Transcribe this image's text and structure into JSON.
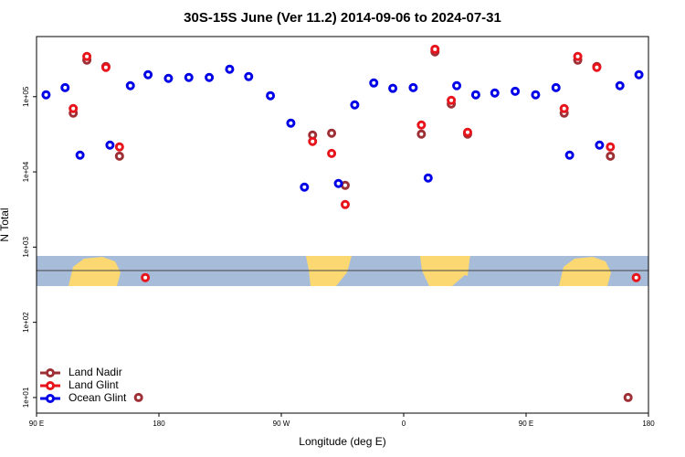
{
  "chart_data": {
    "type": "scatter",
    "title": "30S-15S June (Ver 11.2)   2014-09-06 to 2024-07-31",
    "x_label": "Longitude (deg E)",
    "y_label": "N Total",
    "xlim": [
      90,
      540
    ],
    "xticks": [
      {
        "value": 90,
        "label": "90 E"
      },
      {
        "value": 180,
        "label": "180"
      },
      {
        "value": 270,
        "label": "90 W"
      },
      {
        "value": 360,
        "label": "0"
      },
      {
        "value": 450,
        "label": "90 E"
      },
      {
        "value": 540,
        "label": "180"
      }
    ],
    "ylim": [
      6.2,
      630000
    ],
    "log_y": true,
    "yticks": [
      {
        "value": 10,
        "label": "1e+01"
      },
      {
        "value": 100,
        "label": "1e+02"
      },
      {
        "value": 1000,
        "label": "1e+03"
      },
      {
        "value": 10000,
        "label": "1e+04"
      },
      {
        "value": 100000,
        "label": "1e+05"
      }
    ],
    "legend": "bottom-left",
    "series": [
      {
        "name": "Land Nadir",
        "color": "#9e2f35",
        "x": [
          117,
          127,
          141,
          151,
          165,
          293,
          307,
          317,
          373,
          383,
          395,
          407,
          478,
          488,
          502,
          512,
          525
        ],
        "values": [
          60400,
          306000,
          252000,
          16200,
          10,
          30900,
          32700,
          6620,
          31800,
          394000,
          80000,
          31800,
          60400,
          306000,
          252000,
          16200,
          10
        ]
      },
      {
        "name": "Land Glint",
        "color": "#e8141b",
        "x": [
          117,
          127,
          141,
          151,
          170,
          293,
          307,
          317,
          373,
          383,
          395,
          407,
          478,
          488,
          502,
          512,
          531
        ],
        "values": [
          69500,
          343000,
          245000,
          21500,
          393,
          25400,
          17600,
          3680,
          42000,
          428000,
          89400,
          33600,
          69500,
          343000,
          245000,
          21500,
          393
        ]
      },
      {
        "name": "Ocean Glint",
        "color": "#0000e6",
        "x": [
          97,
          111,
          122,
          144,
          159,
          172,
          187,
          202,
          217,
          232,
          246,
          262,
          277,
          287,
          312,
          324,
          338,
          352,
          367,
          378,
          399,
          413,
          427,
          442,
          457,
          472,
          482,
          504,
          519,
          533
        ],
        "values": [
          106000,
          132000,
          16700,
          22700,
          140000,
          196000,
          175000,
          180000,
          180000,
          232000,
          185000,
          103000,
          44500,
          6270,
          7010,
          77800,
          152000,
          129000,
          132000,
          8300,
          140000,
          106000,
          112000,
          118000,
          106000,
          132000,
          16700,
          22700,
          140000,
          196000
        ]
      }
    ]
  }
}
